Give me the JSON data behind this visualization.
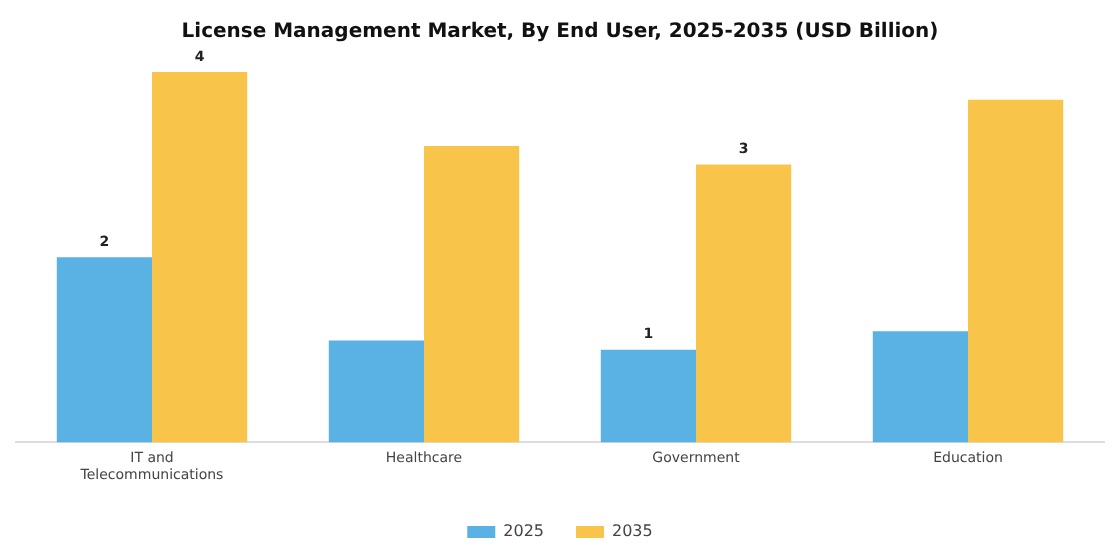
{
  "chart_data": {
    "type": "bar",
    "title": "License Management Market, By End User, 2025-2035 (USD Billion)",
    "tick_labels": "x",
    "categories": [
      "IT and\nTelecommunications",
      "Healthcare",
      "Government",
      "Education"
    ],
    "series": [
      {
        "name": "2025",
        "color": "#5ab1e4",
        "values": [
          2,
          1.1,
          1,
          1.2
        ],
        "value_labels": [
          "2",
          null,
          "1",
          null
        ]
      },
      {
        "name": "2035",
        "color": "#f8c44a",
        "values": [
          4,
          3.2,
          3,
          3.7
        ],
        "value_labels": [
          "4",
          null,
          "3",
          null
        ]
      }
    ],
    "legend": "bottom",
    "grid": false
  }
}
